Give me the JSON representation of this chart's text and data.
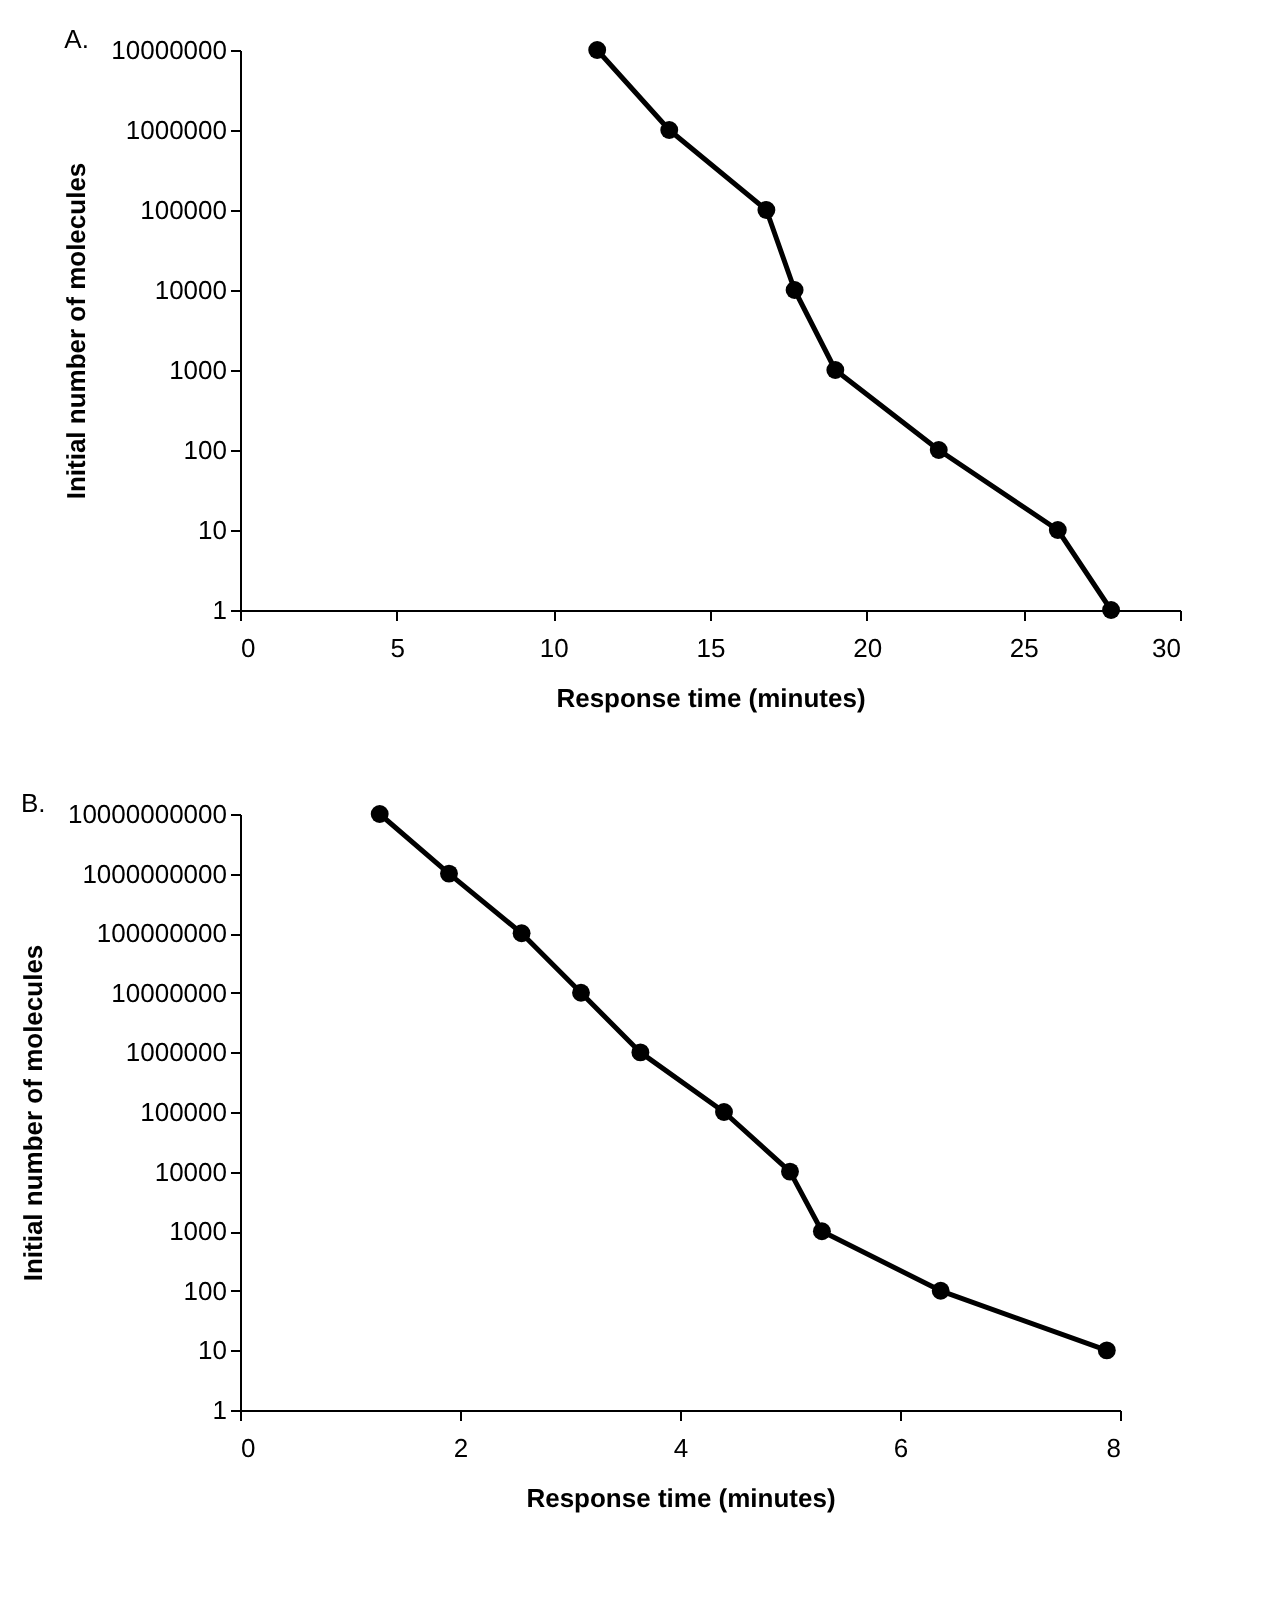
{
  "chart_data": [
    {
      "type": "line",
      "title": "A.",
      "xlabel": "Response time (minutes)",
      "ylabel": "Initial number of molecules",
      "log": "y",
      "grid": false,
      "marker": "circle",
      "line_style": "solid",
      "xlim": [
        0,
        30
      ],
      "xticks": [
        0,
        5,
        10,
        15,
        20,
        25,
        30
      ],
      "ylim": [
        1,
        10000000
      ],
      "yticks": [
        1,
        10,
        100,
        1000,
        10000,
        100000,
        1000000,
        10000000
      ],
      "series": [
        {
          "color": "#000000",
          "x": [
            11.4,
            13.7,
            16.8,
            17.7,
            19.0,
            22.3,
            26.1,
            27.8
          ],
          "values": [
            10000000,
            1000000,
            100000,
            10000,
            1000,
            100,
            10,
            1
          ]
        }
      ]
    },
    {
      "type": "line",
      "title": "B.",
      "xlabel": "Response time (minutes)",
      "ylabel": "Initial number of molecules",
      "log": "y",
      "grid": false,
      "marker": "circle",
      "line_style": "solid",
      "xlim": [
        0,
        8
      ],
      "xticks": [
        0,
        2,
        4,
        6,
        8
      ],
      "ylim": [
        1,
        10000000000
      ],
      "yticks": [
        1,
        10,
        100,
        1000,
        10000,
        100000,
        1000000,
        10000000,
        100000000,
        1000000000,
        10000000000
      ],
      "series": [
        {
          "color": "#000000",
          "x": [
            1.27,
            1.9,
            2.56,
            3.1,
            3.64,
            4.4,
            5.0,
            5.29,
            6.37,
            7.88
          ],
          "values": [
            10000000000,
            1000000000,
            100000000,
            10000000,
            1000000,
            100000,
            10000,
            1000,
            100,
            10
          ]
        }
      ]
    }
  ]
}
